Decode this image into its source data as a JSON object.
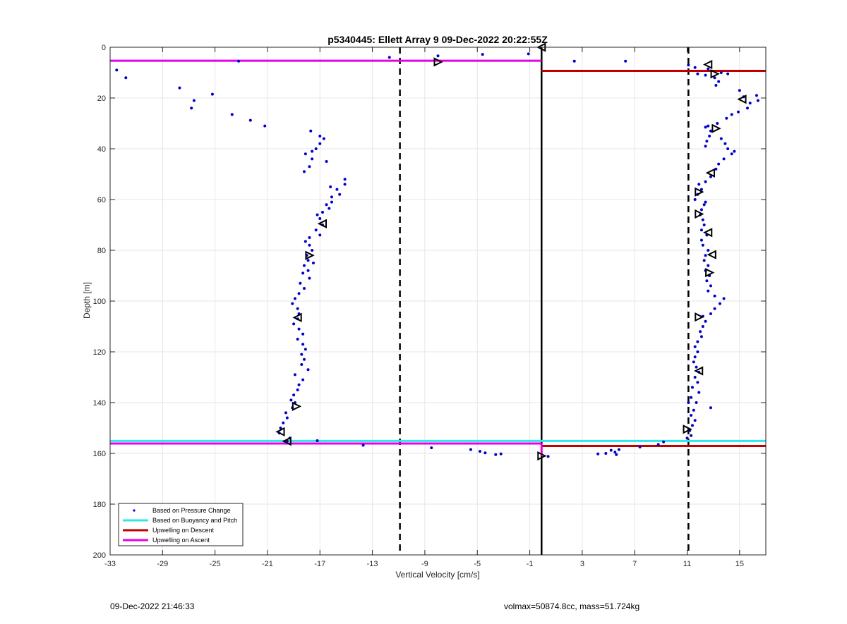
{
  "chart_data": {
    "type": "scatter",
    "title": "p5340445: Ellett Array 9 09-Dec-2022 20:22:55Z",
    "xlabel": "Vertical Velocity [cm/s]",
    "ylabel": "Depth [m]",
    "xlim": [
      -33,
      17
    ],
    "ylim": [
      0,
      200
    ],
    "y_reversed": true,
    "grid": true,
    "x_ticks": [
      -33,
      -29,
      -25,
      -21,
      -17,
      -13,
      -9,
      -5,
      -1,
      3,
      7,
      11,
      15
    ],
    "y_ticks": [
      0,
      20,
      40,
      60,
      80,
      100,
      120,
      140,
      160,
      180,
      200
    ],
    "legend_position": "bottom-left",
    "colors": {
      "pressure": "#0000cc",
      "buoyancy": "#33e6e6",
      "upwelling_descent": "#c00000",
      "upwelling_ascent": "#e600e6",
      "reference": "#000000"
    },
    "legend": [
      {
        "label": "Based on Pressure Change",
        "key": "pressure",
        "style": "dot"
      },
      {
        "label": "Based on Buoyancy and Pitch",
        "key": "buoyancy",
        "style": "line"
      },
      {
        "label": "Upwelling on Descent",
        "key": "upwelling_descent",
        "style": "line"
      },
      {
        "label": "Upwelling on Ascent",
        "key": "upwelling_ascent",
        "style": "line"
      }
    ],
    "vertical_lines": [
      {
        "x": -0.1,
        "style": "solid",
        "color": "#000000"
      },
      {
        "x": -10.9,
        "style": "dashed",
        "color": "#000000"
      },
      {
        "x": 11.1,
        "style": "dashed",
        "color": "#000000"
      }
    ],
    "upwelling_segments": [
      {
        "key": "upwelling_ascent",
        "x": [
          -33,
          -0.1
        ],
        "y": 5.3
      },
      {
        "key": "upwelling_descent",
        "x": [
          -0.1,
          17
        ],
        "y": 9.3
      },
      {
        "key": "buoyancy",
        "x": [
          -33,
          17
        ],
        "y": 155.1
      },
      {
        "key": "upwelling_ascent",
        "x": [
          -33,
          -0.1
        ],
        "y": 156.1
      },
      {
        "key": "upwelling_descent",
        "x": [
          -0.1,
          17
        ],
        "y": 157.1
      },
      {
        "key": "upwelling_ascent",
        "x": [
          -0.1,
          -0.1
        ],
        "y": [
          156.1,
          161
        ]
      }
    ],
    "series": [
      {
        "name": "Based on Pressure Change",
        "points": [
          [
            -32.5,
            9
          ],
          [
            -31.8,
            12
          ],
          [
            -23.2,
            5.5
          ],
          [
            -11.7,
            4
          ],
          [
            -8,
            3.4
          ],
          [
            -4.6,
            2.8
          ],
          [
            -1.1,
            2.6
          ],
          [
            2.4,
            5.5
          ],
          [
            6.3,
            5.5
          ],
          [
            11.1,
            7
          ],
          [
            11.6,
            8
          ],
          [
            -27.7,
            16
          ],
          [
            -26.6,
            21
          ],
          [
            -26.8,
            24
          ],
          [
            -25.2,
            18.5
          ],
          [
            -23.7,
            26.5
          ],
          [
            -22.3,
            28.8
          ],
          [
            -21.2,
            31
          ],
          [
            -17.7,
            33
          ],
          [
            -17,
            35
          ],
          [
            -16.7,
            36
          ],
          [
            -17,
            38
          ],
          [
            -17.3,
            40
          ],
          [
            -17.6,
            41
          ],
          [
            -18.1,
            42
          ],
          [
            -17.6,
            44
          ],
          [
            -17.8,
            47
          ],
          [
            -18.2,
            49
          ],
          [
            -16.5,
            45
          ],
          [
            -15.1,
            52
          ],
          [
            -15.1,
            54
          ],
          [
            -16.2,
            55
          ],
          [
            -15.7,
            56
          ],
          [
            -15.5,
            58
          ],
          [
            -16.1,
            59
          ],
          [
            -16.1,
            61
          ],
          [
            -16.5,
            62
          ],
          [
            -16.3,
            63.5
          ],
          [
            -16.8,
            65
          ],
          [
            -17.2,
            66
          ],
          [
            -17,
            67.5
          ],
          [
            -16.8,
            70
          ],
          [
            -17.3,
            72
          ],
          [
            -17,
            74
          ],
          [
            -17.8,
            75
          ],
          [
            -18.1,
            76.5
          ],
          [
            -17.8,
            78
          ],
          [
            -17.6,
            80
          ],
          [
            -18,
            82
          ],
          [
            -17.9,
            84
          ],
          [
            -17.5,
            85
          ],
          [
            -18.2,
            86
          ],
          [
            -17.9,
            88
          ],
          [
            -18.3,
            89
          ],
          [
            -17.8,
            91
          ],
          [
            -18.5,
            93
          ],
          [
            -18.2,
            95
          ],
          [
            -18.6,
            97
          ],
          [
            -18.9,
            99
          ],
          [
            -19.1,
            101
          ],
          [
            -18.7,
            103
          ],
          [
            -18.6,
            105
          ],
          [
            -18.7,
            107
          ],
          [
            -19,
            109
          ],
          [
            -18.6,
            111
          ],
          [
            -18.3,
            113
          ],
          [
            -18.7,
            115
          ],
          [
            -18.3,
            117
          ],
          [
            -18.1,
            119
          ],
          [
            -18.4,
            121
          ],
          [
            -18.2,
            123
          ],
          [
            -18.4,
            125
          ],
          [
            -17.9,
            127
          ],
          [
            -18.9,
            129
          ],
          [
            -18.3,
            131
          ],
          [
            -18.6,
            133
          ],
          [
            -18.7,
            135
          ],
          [
            -19,
            137
          ],
          [
            -19.2,
            139
          ],
          [
            -18.9,
            140
          ],
          [
            -19.1,
            142
          ],
          [
            -19.6,
            144
          ],
          [
            -19.5,
            146
          ],
          [
            -19.8,
            148
          ],
          [
            -20,
            150
          ],
          [
            -20.1,
            152
          ],
          [
            -19.3,
            154
          ],
          [
            -19.5,
            155.2
          ],
          [
            -17.2,
            155
          ],
          [
            -13.7,
            156.8
          ],
          [
            -8.5,
            157.8
          ],
          [
            -5.5,
            158.5
          ],
          [
            -4.8,
            159.2
          ],
          [
            -4.4,
            159.8
          ],
          [
            -3.6,
            160.5
          ],
          [
            -3.2,
            160.2
          ],
          [
            0.4,
            161.2
          ],
          [
            4.2,
            160.2
          ],
          [
            4.8,
            160
          ],
          [
            5.2,
            158.8
          ],
          [
            5.5,
            159.5
          ],
          [
            5.8,
            158.5
          ],
          [
            5.6,
            160.5
          ],
          [
            7.4,
            157.5
          ],
          [
            8.8,
            156.5
          ],
          [
            9.2,
            155.5
          ],
          [
            11.8,
            10.5
          ],
          [
            12.4,
            11
          ],
          [
            12.6,
            8.5
          ],
          [
            13.6,
            10
          ],
          [
            13.1,
            12
          ],
          [
            13.4,
            13.5
          ],
          [
            13.2,
            15
          ],
          [
            14.1,
            10.5
          ],
          [
            15,
            17
          ],
          [
            15.3,
            19.5
          ],
          [
            15.8,
            22
          ],
          [
            16.3,
            19
          ],
          [
            16.4,
            21
          ],
          [
            15.6,
            24
          ],
          [
            14.9,
            25.5
          ],
          [
            14.4,
            26.5
          ],
          [
            14,
            28
          ],
          [
            13.3,
            30
          ],
          [
            12.6,
            31
          ],
          [
            12.4,
            31.5
          ],
          [
            12.8,
            33
          ],
          [
            12.7,
            35
          ],
          [
            12.5,
            37
          ],
          [
            12.4,
            39
          ],
          [
            13.6,
            36
          ],
          [
            13.9,
            38
          ],
          [
            14.1,
            40
          ],
          [
            14.4,
            42
          ],
          [
            14.6,
            41
          ],
          [
            13.8,
            44
          ],
          [
            13.4,
            46
          ],
          [
            13.2,
            48
          ],
          [
            12.8,
            51
          ],
          [
            12.4,
            53
          ],
          [
            11.9,
            54
          ],
          [
            12.1,
            56
          ],
          [
            11.8,
            58
          ],
          [
            11.6,
            60
          ],
          [
            12.4,
            61
          ],
          [
            12.3,
            62
          ],
          [
            12.1,
            64
          ],
          [
            12,
            66
          ],
          [
            12.2,
            68
          ],
          [
            12.3,
            70
          ],
          [
            12.1,
            72
          ],
          [
            12.5,
            74
          ],
          [
            12.1,
            76
          ],
          [
            12.2,
            78
          ],
          [
            12.6,
            80
          ],
          [
            12.4,
            82
          ],
          [
            12.3,
            84
          ],
          [
            12.6,
            86
          ],
          [
            12.4,
            88
          ],
          [
            12.7,
            90
          ],
          [
            12.5,
            92
          ],
          [
            12.8,
            94
          ],
          [
            12.6,
            96
          ],
          [
            13.1,
            98
          ],
          [
            13.8,
            99
          ],
          [
            13.5,
            101
          ],
          [
            13.1,
            103
          ],
          [
            12.8,
            105
          ],
          [
            12.2,
            106
          ],
          [
            12.4,
            108
          ],
          [
            12.2,
            110
          ],
          [
            12,
            112
          ],
          [
            12.1,
            114
          ],
          [
            11.8,
            116
          ],
          [
            11.6,
            118
          ],
          [
            11.8,
            120
          ],
          [
            11.6,
            122
          ],
          [
            11.5,
            124
          ],
          [
            11.7,
            126
          ],
          [
            11.9,
            128
          ],
          [
            11.6,
            130
          ],
          [
            11.8,
            132
          ],
          [
            11.4,
            134
          ],
          [
            11.9,
            136
          ],
          [
            11.3,
            138
          ],
          [
            11.7,
            140
          ],
          [
            11.1,
            140
          ],
          [
            11.5,
            143
          ],
          [
            11.3,
            145
          ],
          [
            11.6,
            147
          ],
          [
            11.4,
            149
          ],
          [
            11.2,
            151
          ],
          [
            11.3,
            153
          ],
          [
            11,
            154
          ],
          [
            12.8,
            142
          ]
        ]
      },
      {
        "name": "Triangle Markers",
        "points": [
          [
            -0.1,
            0
          ],
          [
            -8,
            5.8
          ],
          [
            12.6,
            6.8
          ],
          [
            13.1,
            10.5
          ],
          [
            15.2,
            20.5
          ],
          [
            13.2,
            32
          ],
          [
            12.8,
            49.5
          ],
          [
            11.9,
            57
          ],
          [
            -16.8,
            69.5
          ],
          [
            11.9,
            65.7
          ],
          [
            12.6,
            73
          ],
          [
            -17.8,
            82
          ],
          [
            12.9,
            81.7
          ],
          [
            12.7,
            88.8
          ],
          [
            -18.7,
            106.5
          ],
          [
            11.9,
            106.3
          ],
          [
            11.9,
            127.5
          ],
          [
            -18.8,
            141.5
          ],
          [
            -20,
            151.5
          ],
          [
            11,
            150.5
          ],
          [
            -19.5,
            155.2
          ],
          [
            -0.1,
            161
          ]
        ]
      }
    ]
  },
  "footer": {
    "timestamp": "09-Dec-2022 21:46:33",
    "info": "volmax=50874.8cc, mass=51.724kg"
  }
}
